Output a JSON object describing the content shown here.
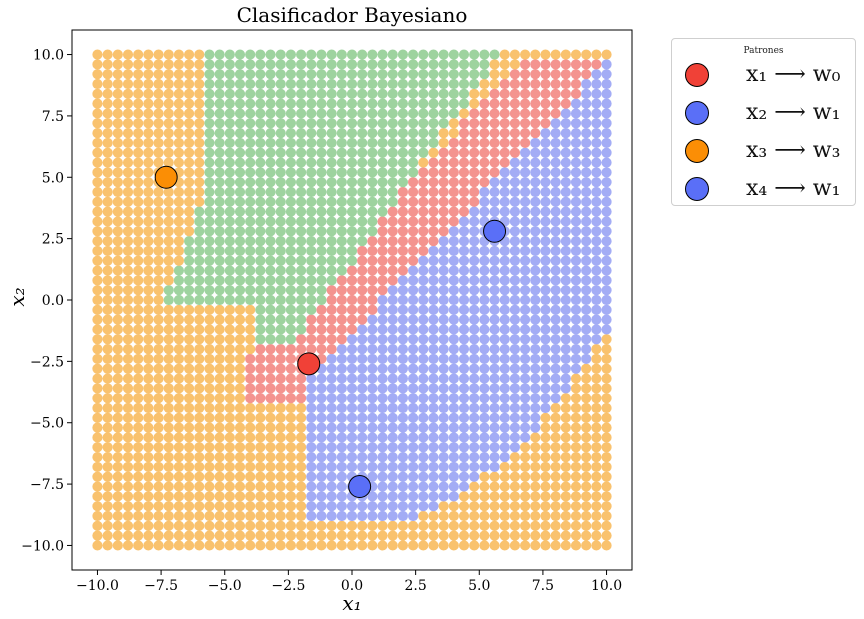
{
  "chart_data": {
    "type": "scatter",
    "title": "Clasificador Bayesiano",
    "xlabel": "x₁",
    "ylabel": "x₂",
    "xlim": [
      -11,
      11
    ],
    "ylim": [
      -11,
      11
    ],
    "xticks": [
      -10.0,
      -7.5,
      -5.0,
      -2.5,
      0.0,
      2.5,
      5.0,
      7.5,
      10.0
    ],
    "yticks": [
      -10.0,
      -7.5,
      -5.0,
      -2.5,
      0.0,
      2.5,
      5.0,
      7.5,
      10.0
    ],
    "xtick_labels": [
      "−10.0",
      "−7.5",
      "−5.0",
      "−2.5",
      "0.0",
      "2.5",
      "5.0",
      "7.5",
      "10.0"
    ],
    "ytick_labels": [
      "−10.0",
      "−7.5",
      "−5.0",
      "−2.5",
      "0.0",
      "2.5",
      "5.0",
      "7.5",
      "10.0"
    ],
    "grid": false,
    "grid_points": {
      "from": -10,
      "to": 10,
      "step": 0.4,
      "marker_radius_units": 0.2
    },
    "region_colors": {
      "w0": "#f4948f",
      "w1": "#a3acf5",
      "w2": "#9ed39f",
      "w3": "#f9c26e"
    },
    "patterns": [
      {
        "x": -1.7,
        "y": -2.6,
        "color": "#f04137",
        "label": "x₁ ⟶ w₀"
      },
      {
        "x": 5.6,
        "y": 2.8,
        "color": "#5a6ff7",
        "label": "x₂ ⟶ w₁"
      },
      {
        "x": -7.3,
        "y": 5.0,
        "color": "#fb8e05",
        "label": "x₃ ⟶ w₃"
      },
      {
        "x": 0.3,
        "y": -7.6,
        "color": "#5a6ff7",
        "label": "x₄ ⟶ w₁"
      }
    ],
    "legend": {
      "title": "Patrones",
      "position": "outside-right-top"
    }
  }
}
